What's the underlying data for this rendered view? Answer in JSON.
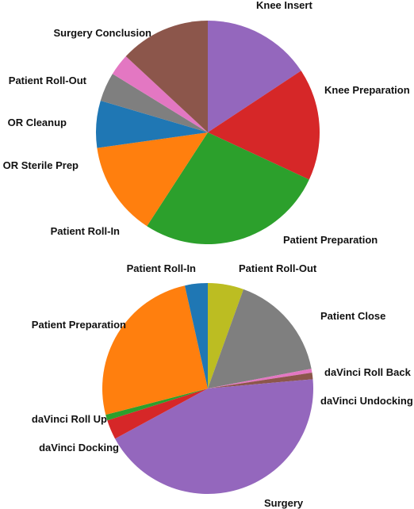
{
  "chart_data": [
    {
      "type": "pie",
      "title": "",
      "start_angle_deg": 90,
      "direction": "clockwise",
      "slices": [
        {
          "label": "Knee Insert",
          "value": 15.0,
          "color": "#9467bd"
        },
        {
          "label": "Knee Preparation",
          "value": 15.5,
          "color": "#d62728"
        },
        {
          "label": "Patient Preparation",
          "value": 26.0,
          "color": "#2ca02c"
        },
        {
          "label": "Patient Roll-In",
          "value": 13.0,
          "color": "#ff7f0e"
        },
        {
          "label": "OR Sterile Prep",
          "value": 6.5,
          "color": "#1f77b4"
        },
        {
          "label": "OR Cleanup",
          "value": 4.0,
          "color": "#7f7f7f"
        },
        {
          "label": "Patient Roll-Out",
          "value": 3.0,
          "color": "#e377c2"
        },
        {
          "label": "Surgery Conclusion",
          "value": 12.5,
          "color": "#8c564b"
        }
      ],
      "legend": "none"
    },
    {
      "type": "pie",
      "title": "",
      "start_angle_deg": 90,
      "direction": "clockwise",
      "slices": [
        {
          "label": "Patient Roll-Out",
          "value": 5.5,
          "color": "#bcbd22"
        },
        {
          "label": "Patient Close",
          "value": 16.5,
          "color": "#7f7f7f"
        },
        {
          "label": "daVinci Roll Back",
          "value": 0.6,
          "color": "#e377c2"
        },
        {
          "label": "daVinci Undocking",
          "value": 1.0,
          "color": "#8c564b"
        },
        {
          "label": "Surgery",
          "value": 43.5,
          "color": "#9467bd"
        },
        {
          "label": "daVinci Docking",
          "value": 3.0,
          "color": "#d62728"
        },
        {
          "label": "daVinci Roll Up",
          "value": 0.9,
          "color": "#2ca02c"
        },
        {
          "label": "Patient Preparation",
          "value": 25.5,
          "color": "#ff7f0e"
        },
        {
          "label": "Patient Roll-In",
          "value": 3.5,
          "color": "#1f77b4"
        }
      ],
      "legend": "none"
    }
  ]
}
